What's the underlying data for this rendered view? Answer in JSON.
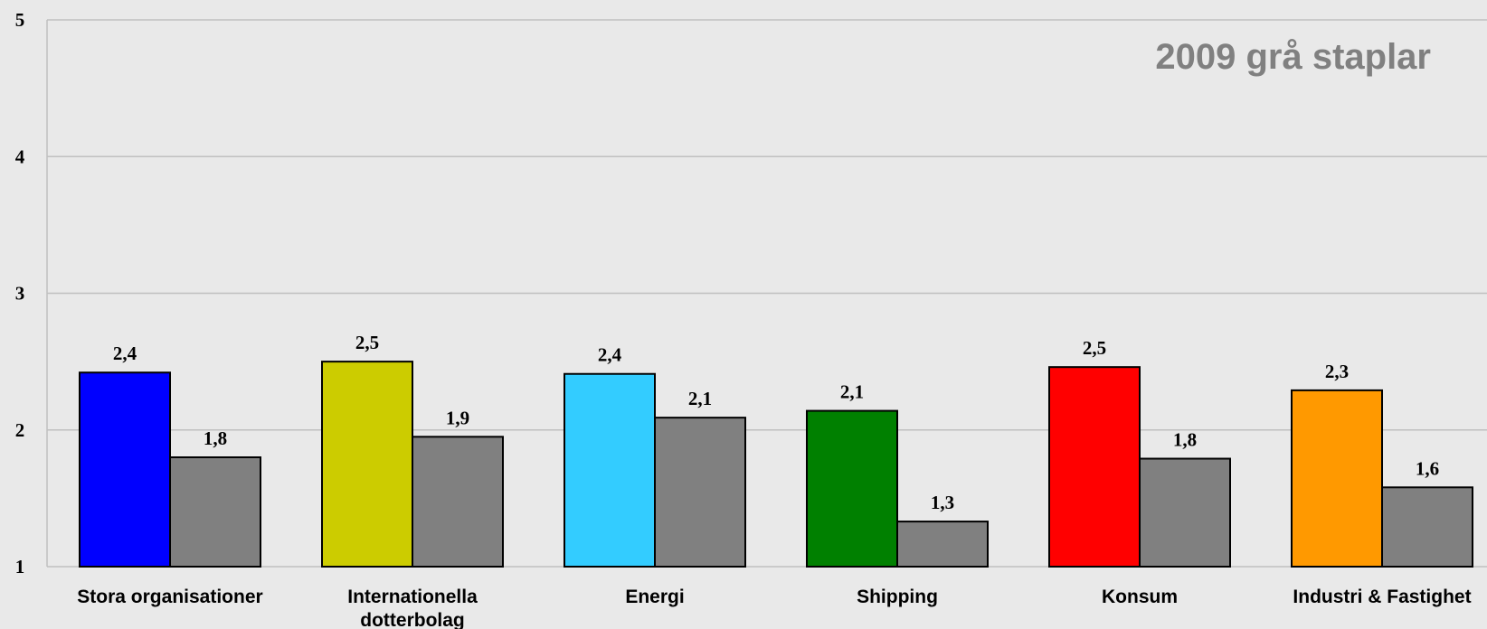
{
  "chart_data": {
    "type": "bar",
    "title": "",
    "annotation": "2009 grå staplar",
    "xlabel": "",
    "ylabel": "",
    "ylim": [
      1,
      5
    ],
    "yticks": [
      "1",
      "2",
      "3",
      "4",
      "5"
    ],
    "grid": true,
    "categories": [
      [
        "Stora organisationer"
      ],
      [
        "Internationella",
        "dotterbolag"
      ],
      [
        "Energi"
      ],
      [
        "Shipping"
      ],
      [
        "Konsum"
      ],
      [
        "Industri & Fastighet"
      ]
    ],
    "series": [
      {
        "values": [
          2.42,
          2.5,
          2.41,
          2.14,
          2.46,
          2.29
        ],
        "labels": [
          "2,4",
          "2,5",
          "2,4",
          "2,1",
          "2,5",
          "2,3"
        ],
        "colors": [
          "#0000ff",
          "#cccc00",
          "#33ccff",
          "#008000",
          "#ff0000",
          "#ff9900"
        ]
      },
      {
        "values": [
          1.8,
          1.95,
          2.09,
          1.33,
          1.79,
          1.58
        ],
        "labels": [
          "1,8",
          "1,9",
          "2,1",
          "1,3",
          "1,8",
          "1,6"
        ],
        "colors": [
          "#808080",
          "#808080",
          "#808080",
          "#808080",
          "#808080",
          "#808080"
        ]
      }
    ],
    "colors": {
      "background": "#e9e9e9",
      "grid": "#c0c0c0",
      "annotation": "#808080"
    }
  }
}
